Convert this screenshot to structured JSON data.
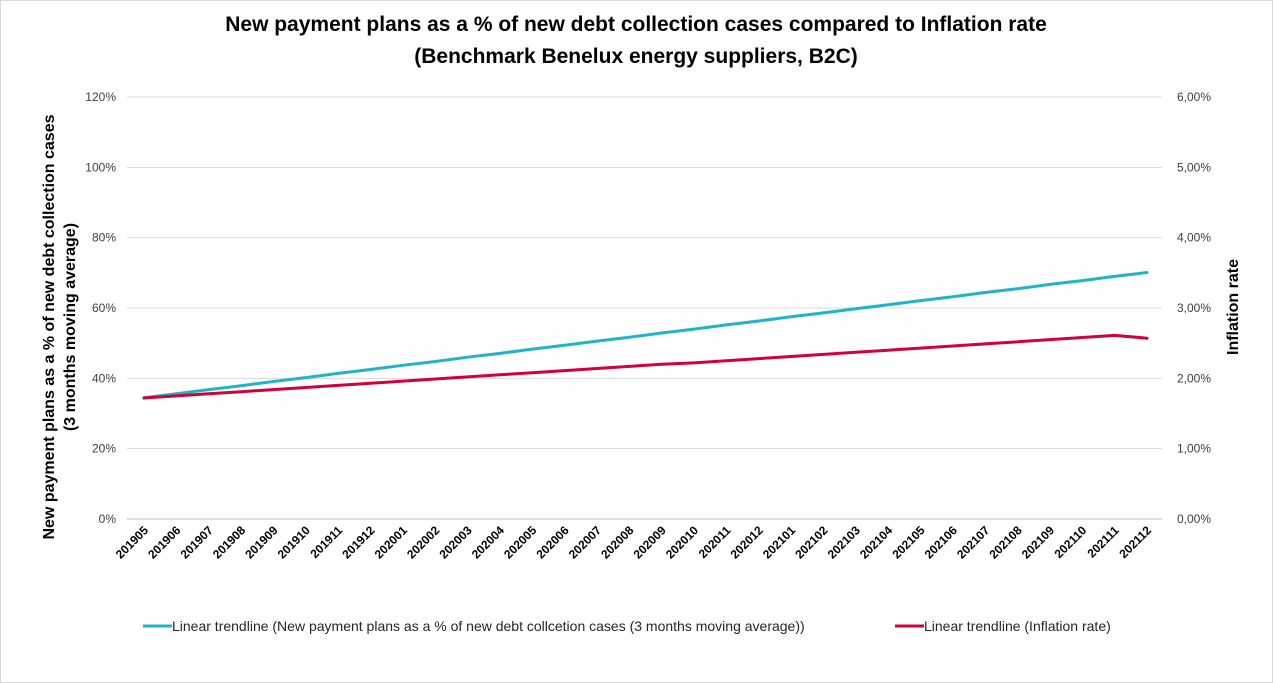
{
  "chart_data": {
    "type": "line",
    "title": "New payment plans as a % of new debt collection cases compared to Inflation rate",
    "subtitle": "(Benchmark Benelux energy suppliers, B2C)",
    "ylabel": "New payment plans as a % of new debt collection cases",
    "ylabel_line2": "(3 months moving average)",
    "y2label": "Inflation rate",
    "ylim": [
      0,
      120
    ],
    "y2lim": [
      0,
      6
    ],
    "yticks": [
      "0%",
      "20%",
      "40%",
      "60%",
      "80%",
      "100%",
      "120%"
    ],
    "y2ticks": [
      "0,00%",
      "1,00%",
      "2,00%",
      "3,00%",
      "4,00%",
      "5,00%",
      "6,00%"
    ],
    "grid": true,
    "legend_position": "bottom",
    "x": [
      "201905",
      "201906",
      "201907",
      "201908",
      "201909",
      "201910",
      "201911",
      "201912",
      "202001",
      "202002",
      "202003",
      "202004",
      "202005",
      "202006",
      "202007",
      "202008",
      "202009",
      "202010",
      "202011",
      "202012",
      "202101",
      "202102",
      "202103",
      "202104",
      "202105",
      "202106",
      "202107",
      "202108",
      "202109",
      "202110",
      "202111",
      "202112"
    ],
    "series": [
      {
        "name": "Linear trendline (New payment plans as a % of new debt collcetion cases (3 months moving average))",
        "axis": "left",
        "color": "#1fb5c2",
        "values": [
          34.5,
          35.6,
          36.8,
          37.9,
          39.1,
          40.2,
          41.4,
          42.5,
          43.7,
          44.8,
          46.0,
          47.1,
          48.3,
          49.4,
          50.6,
          51.7,
          52.9,
          54.0,
          55.2,
          56.3,
          57.5,
          58.6,
          59.8,
          60.9,
          62.1,
          63.2,
          64.4,
          65.5,
          66.7,
          67.8,
          69.0,
          70.1
        ]
      },
      {
        "name": "Linear trendline (Inflation rate)",
        "axis": "right",
        "color": "#d4003c",
        "values": [
          1.72,
          1.75,
          1.78,
          1.81,
          1.84,
          1.87,
          1.9,
          1.93,
          1.96,
          1.99,
          2.02,
          2.05,
          2.08,
          2.11,
          2.14,
          2.17,
          2.2,
          2.22,
          2.25,
          2.28,
          2.31,
          2.34,
          2.37,
          2.4,
          2.43,
          2.46,
          2.49,
          2.52,
          2.55,
          2.58,
          2.61,
          2.57
        ]
      }
    ]
  }
}
